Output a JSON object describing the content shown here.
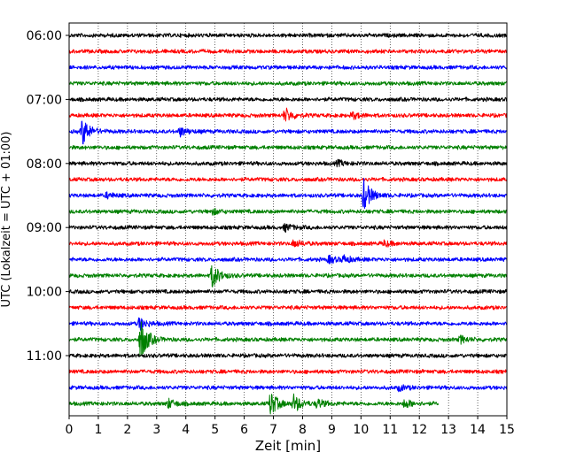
{
  "chart_data": {
    "type": "line",
    "title": "",
    "xlabel": "Zeit  [min]",
    "ylabel": "UTC (Lokalzeit = UTC + 01:00)",
    "xlim": [
      0,
      15
    ],
    "x_ticks": [
      "0",
      "1",
      "2",
      "3",
      "4",
      "5",
      "6",
      "7",
      "8",
      "9",
      "10",
      "11",
      "12",
      "13",
      "14",
      "15"
    ],
    "y_ticks": [
      "06:00",
      "07:00",
      "08:00",
      "09:00",
      "10:00",
      "11:00"
    ],
    "grid": "vertical dotted at each minute",
    "trace_interval_minutes": 15,
    "color_cycle": [
      "#000000",
      "#ff0000",
      "#0000ff",
      "#008000"
    ],
    "series": [
      {
        "start": "06:00",
        "color": "#000000",
        "end_min": 15,
        "events": []
      },
      {
        "start": "06:15",
        "color": "#ff0000",
        "end_min": 15,
        "events": []
      },
      {
        "start": "06:30",
        "color": "#0000ff",
        "end_min": 15,
        "events": []
      },
      {
        "start": "06:45",
        "color": "#008000",
        "end_min": 15,
        "events": []
      },
      {
        "start": "07:00",
        "color": "#000000",
        "end_min": 15,
        "events": []
      },
      {
        "start": "07:15",
        "color": "#ff0000",
        "end_min": 15,
        "events": [
          {
            "t": 7.4,
            "amp": 8
          },
          {
            "t": 9.7,
            "amp": 4
          }
        ]
      },
      {
        "start": "07:30",
        "color": "#0000ff",
        "end_min": 15,
        "events": [
          {
            "t": 0.45,
            "amp": 16
          },
          {
            "t": 3.8,
            "amp": 5
          }
        ]
      },
      {
        "start": "07:45",
        "color": "#008000",
        "end_min": 15,
        "events": []
      },
      {
        "start": "08:00",
        "color": "#000000",
        "end_min": 15,
        "events": [
          {
            "t": 9.2,
            "amp": 3
          }
        ]
      },
      {
        "start": "08:15",
        "color": "#ff0000",
        "end_min": 15,
        "events": []
      },
      {
        "start": "08:30",
        "color": "#0000ff",
        "end_min": 15,
        "events": [
          {
            "t": 10.1,
            "amp": 18
          },
          {
            "t": 1.3,
            "amp": 3
          }
        ]
      },
      {
        "start": "08:45",
        "color": "#008000",
        "end_min": 15,
        "events": [
          {
            "t": 4.9,
            "amp": 3
          }
        ]
      },
      {
        "start": "09:00",
        "color": "#000000",
        "end_min": 15,
        "events": [
          {
            "t": 7.4,
            "amp": 4
          }
        ]
      },
      {
        "start": "09:15",
        "color": "#ff0000",
        "end_min": 15,
        "events": [
          {
            "t": 7.7,
            "amp": 4
          },
          {
            "t": 10.8,
            "amp": 3
          }
        ]
      },
      {
        "start": "09:30",
        "color": "#0000ff",
        "end_min": 15,
        "events": [
          {
            "t": 8.9,
            "amp": 4
          },
          {
            "t": 9.4,
            "amp": 4
          }
        ]
      },
      {
        "start": "09:45",
        "color": "#008000",
        "end_min": 15,
        "events": [
          {
            "t": 4.9,
            "amp": 14
          }
        ]
      },
      {
        "start": "10:00",
        "color": "#000000",
        "end_min": 15,
        "events": []
      },
      {
        "start": "10:15",
        "color": "#ff0000",
        "end_min": 15,
        "events": []
      },
      {
        "start": "10:30",
        "color": "#0000ff",
        "end_min": 15,
        "events": [
          {
            "t": 2.4,
            "amp": 7
          }
        ]
      },
      {
        "start": "10:45",
        "color": "#008000",
        "end_min": 15,
        "events": [
          {
            "t": 2.45,
            "amp": 24
          },
          {
            "t": 13.4,
            "amp": 4
          }
        ]
      },
      {
        "start": "11:00",
        "color": "#000000",
        "end_min": 15,
        "events": []
      },
      {
        "start": "11:15",
        "color": "#ff0000",
        "end_min": 15,
        "events": []
      },
      {
        "start": "11:30",
        "color": "#0000ff",
        "end_min": 15,
        "events": [
          {
            "t": 11.3,
            "amp": 3
          }
        ]
      },
      {
        "start": "11:45",
        "color": "#008000",
        "end_min": 12.65,
        "events": [
          {
            "t": 6.9,
            "amp": 14
          },
          {
            "t": 7.7,
            "amp": 10
          },
          {
            "t": 3.4,
            "amp": 5
          },
          {
            "t": 8.5,
            "amp": 5
          },
          {
            "t": 11.5,
            "amp": 5
          }
        ]
      }
    ]
  }
}
